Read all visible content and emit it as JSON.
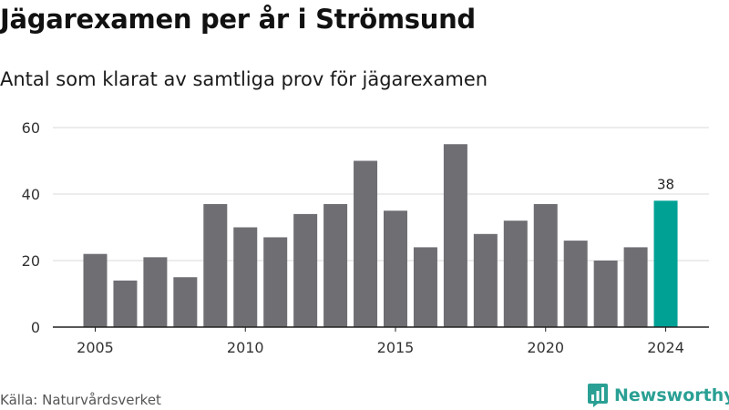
{
  "title": "Jägarexamen per år i Strömsund",
  "subtitle": "Antal som klarat av samtliga prov för jägarexamen",
  "source": "Källa: Naturvårdsverket",
  "brand": {
    "name": "Newsworthy",
    "icon": "newsworthy-logo-icon",
    "color": "#2aa094"
  },
  "chart_data": {
    "type": "bar",
    "categories": [
      "2005",
      "2006",
      "2007",
      "2008",
      "2009",
      "2010",
      "2011",
      "2012",
      "2013",
      "2014",
      "2015",
      "2016",
      "2017",
      "2018",
      "2019",
      "2020",
      "2021",
      "2022",
      "2023",
      "2024"
    ],
    "values": [
      22,
      14,
      21,
      15,
      37,
      30,
      27,
      34,
      37,
      50,
      35,
      24,
      55,
      28,
      32,
      37,
      26,
      20,
      24,
      38
    ],
    "x_tick_labels": [
      "2005",
      "2010",
      "2015",
      "2020",
      "2024"
    ],
    "y_ticks": [
      0,
      20,
      40,
      60
    ],
    "ylim": [
      0,
      60
    ],
    "grid": true,
    "bar_color": "#6f6e73",
    "highlight": {
      "category": "2024",
      "color": "#00a195",
      "label": "38"
    }
  }
}
